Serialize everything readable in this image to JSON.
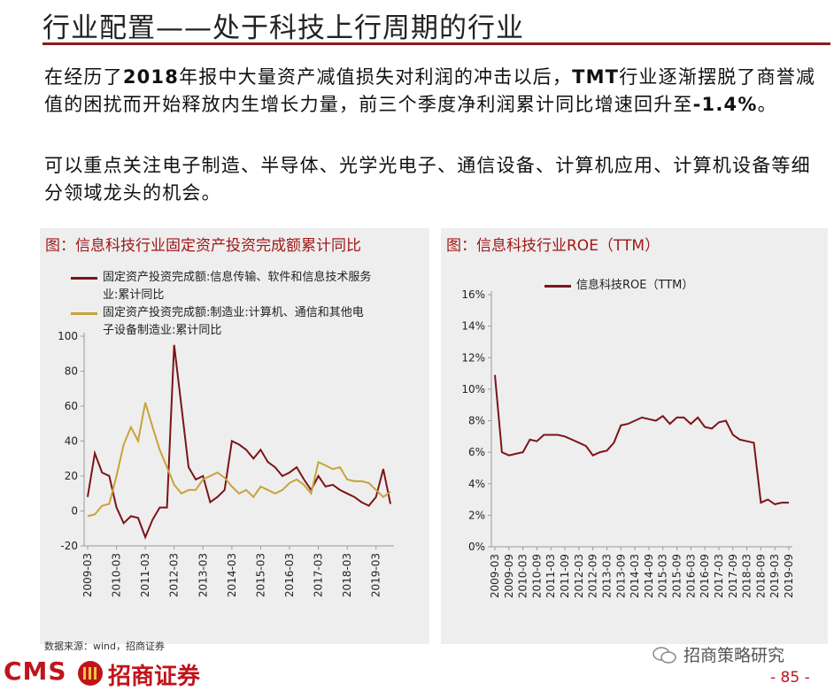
{
  "header": {
    "title": "行业配置——处于科技上行周期的行业"
  },
  "body": {
    "paragraphs": [
      [
        "在经历了",
        "2018",
        "年报中大量资产减值损失对利润的冲击以后，",
        "TMT",
        "行业逐渐摆脱了商誉减值的困扰而开始释放内生增长力量，前三个季度净利润累计同比增速回升至",
        "-1.4%",
        "。"
      ],
      [
        "可以重点关注电子制造、半导体、光学光电子、通信设备、计算机应用、计算机设备等细分领域龙头的机会。"
      ]
    ]
  },
  "chart_data": [
    {
      "type": "line",
      "title": "图：信息科技行业固定资产投资完成额累计同比",
      "x": [
        "2009-03",
        "2009-06",
        "2009-09",
        "2009-12",
        "2010-03",
        "2010-06",
        "2010-09",
        "2010-12",
        "2011-03",
        "2011-06",
        "2011-09",
        "2011-12",
        "2012-03",
        "2012-06",
        "2012-09",
        "2012-12",
        "2013-03",
        "2013-06",
        "2013-09",
        "2013-12",
        "2014-03",
        "2014-06",
        "2014-09",
        "2014-12",
        "2015-03",
        "2015-06",
        "2015-09",
        "2015-12",
        "2016-03",
        "2016-06",
        "2016-09",
        "2016-12",
        "2017-03",
        "2017-06",
        "2017-09",
        "2017-12",
        "2018-03",
        "2018-06",
        "2018-09",
        "2018-12",
        "2019-03",
        "2019-06",
        "2019-09"
      ],
      "series": [
        {
          "name": "固定资产投资完成额:信息传输、软件和信息技术服务业:累计同比",
          "color": "#7b1416",
          "values": [
            8,
            33,
            22,
            20,
            2,
            -7,
            -3,
            -4,
            -15,
            -5,
            2,
            2,
            95,
            60,
            25,
            18,
            20,
            5,
            8,
            12,
            40,
            38,
            35,
            30,
            35,
            28,
            25,
            20,
            22,
            25,
            18,
            12,
            20,
            14,
            15,
            12,
            10,
            8,
            5,
            3,
            8,
            24,
            4
          ]
        },
        {
          "name": "固定资产投资完成额:制造业:计算机、通信和其他电子设备制造业:累计同比",
          "color": "#c9a23a",
          "values": [
            -3,
            -2,
            3,
            4,
            20,
            38,
            48,
            40,
            62,
            48,
            35,
            25,
            15,
            10,
            12,
            12,
            18,
            20,
            22,
            19,
            14,
            10,
            12,
            8,
            14,
            12,
            10,
            12,
            16,
            18,
            15,
            10,
            28,
            26,
            24,
            25,
            18,
            17,
            17,
            16,
            12,
            8,
            11
          ]
        }
      ],
      "ylim": [
        -20,
        100
      ],
      "yticks": [
        -20,
        0,
        20,
        40,
        60,
        80,
        100
      ],
      "xticks": [
        "2009-03",
        "2010-03",
        "2011-03",
        "2012-03",
        "2013-03",
        "2014-03",
        "2015-03",
        "2016-03",
        "2017-03",
        "2018-03",
        "2019-03"
      ],
      "grid": false,
      "legend": "upper left"
    },
    {
      "type": "line",
      "title": "图：信息科技行业ROE（TTM）",
      "x": [
        "2009-03",
        "2009-06",
        "2009-09",
        "2009-12",
        "2010-03",
        "2010-06",
        "2010-09",
        "2010-12",
        "2011-03",
        "2011-06",
        "2011-09",
        "2011-12",
        "2012-03",
        "2012-06",
        "2012-09",
        "2012-12",
        "2013-03",
        "2013-06",
        "2013-09",
        "2013-12",
        "2014-03",
        "2014-06",
        "2014-09",
        "2014-12",
        "2015-03",
        "2015-06",
        "2015-09",
        "2015-12",
        "2016-03",
        "2016-06",
        "2016-09",
        "2016-12",
        "2017-03",
        "2017-06",
        "2017-09",
        "2017-12",
        "2018-03",
        "2018-06",
        "2018-09",
        "2018-12",
        "2019-03",
        "2019-06",
        "2019-09"
      ],
      "series": [
        {
          "name": "信息科技ROE（TTM）",
          "color": "#7b1416",
          "values": [
            10.9,
            6.0,
            5.8,
            5.9,
            6.0,
            6.8,
            6.7,
            7.1,
            7.1,
            7.1,
            7.0,
            6.8,
            6.6,
            6.4,
            5.8,
            6.0,
            6.1,
            6.6,
            7.7,
            7.8,
            8.0,
            8.2,
            8.1,
            8.0,
            8.3,
            7.8,
            8.2,
            8.2,
            7.8,
            8.2,
            7.6,
            7.5,
            7.9,
            8.0,
            7.1,
            6.8,
            6.7,
            6.6,
            2.8,
            3.0,
            2.7,
            2.8,
            2.8
          ]
        }
      ],
      "ylim": [
        0,
        16
      ],
      "yticks": [
        {
          "value": 0,
          "label": "0%"
        },
        {
          "value": 2,
          "label": "2%"
        },
        {
          "value": 4,
          "label": "4%"
        },
        {
          "value": 6,
          "label": "6%"
        },
        {
          "value": 8,
          "label": "8%"
        },
        {
          "value": 10,
          "label": "10%"
        },
        {
          "value": 12,
          "label": "12%"
        },
        {
          "value": 14,
          "label": "14%"
        },
        {
          "value": 16,
          "label": "16%"
        }
      ],
      "xticks": [
        "2009-03",
        "2009-09",
        "2010-03",
        "2010-09",
        "2011-03",
        "2011-09",
        "2012-03",
        "2012-09",
        "2013-03",
        "2013-09",
        "2014-03",
        "2014-09",
        "2015-03",
        "2015-09",
        "2016-03",
        "2016-09",
        "2017-03",
        "2017-09",
        "2018-03",
        "2018-09",
        "2019-03",
        "2019-09"
      ],
      "grid": false,
      "legend": "upper center"
    }
  ],
  "source": "数据来源：wind，招商证券",
  "footer": {
    "logo_en": "CMS",
    "logo_cn": "招商证券",
    "watermark": "招商策略研究",
    "page": "- 85 -"
  }
}
